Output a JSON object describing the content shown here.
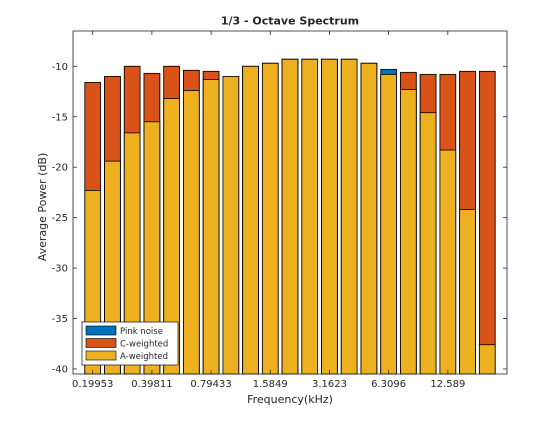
{
  "chart_data": {
    "type": "bar",
    "title": "1/3 - Octave Spectrum",
    "xlabel": "Frequency(kHz)",
    "ylabel": "Average Power (dB)",
    "ylim": [
      -40.5,
      -6.5
    ],
    "yticks": [
      -40,
      -35,
      -30,
      -25,
      -20,
      -15,
      -10
    ],
    "x_tick_labels": [
      "0.19953",
      "0.39811",
      "0.79433",
      "1.5849",
      "3.1623",
      "6.3096",
      "12.589"
    ],
    "x_tick_bar_index": [
      0,
      3,
      6,
      9,
      12,
      15,
      18
    ],
    "grid": false,
    "legend_position": "bottom-left",
    "colors": {
      "pink": "#0072BD",
      "c": "#D95319",
      "a": "#EDB120",
      "axis": "#262626"
    },
    "series": [
      {
        "name": "Pink noise",
        "color": "#0072BD",
        "values": [
          -11.6,
          -11.0,
          -10.0,
          -10.7,
          -10.0,
          -10.4,
          -10.5,
          -11.0,
          -10.0,
          -9.7,
          -9.3,
          -9.3,
          -9.3,
          -9.3,
          -9.7,
          -10.3,
          -10.6,
          -10.8,
          -10.8,
          -10.5,
          -10.5
        ]
      },
      {
        "name": "C-weighted",
        "color": "#D95319",
        "values": [
          -11.6,
          -11.0,
          -10.0,
          -10.7,
          -10.0,
          -10.4,
          -10.5,
          -11.0,
          -10.0,
          -9.7,
          -9.3,
          -9.3,
          -9.3,
          -9.3,
          -9.7,
          -10.8,
          -10.6,
          -10.8,
          -10.8,
          -10.5,
          -10.5
        ]
      },
      {
        "name": "A-weighted",
        "color": "#EDB120",
        "values": [
          -22.3,
          -19.4,
          -16.6,
          -15.5,
          -13.2,
          -12.4,
          -11.3,
          -11.0,
          -10.0,
          -9.7,
          -9.3,
          -9.3,
          -9.3,
          -9.3,
          -9.7,
          -10.8,
          -12.3,
          -14.6,
          -18.3,
          -24.2,
          -37.6
        ]
      }
    ]
  }
}
